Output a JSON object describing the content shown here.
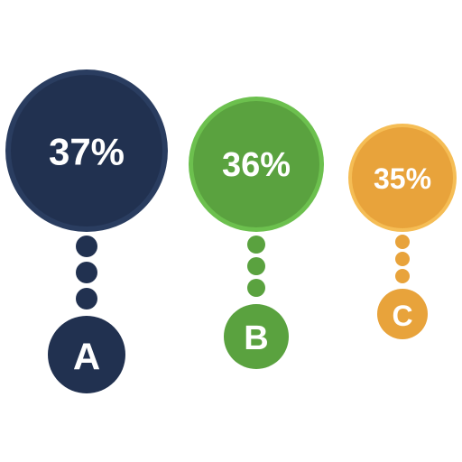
{
  "chart_data": {
    "type": "bubble",
    "categories": [
      "A",
      "B",
      "C"
    ],
    "values": [
      37,
      36,
      35
    ],
    "value_labels": [
      "37%",
      "36%",
      "35%"
    ],
    "colors": {
      "A": {
        "fill": "#213150",
        "ring": "#2a3d60"
      },
      "B": {
        "fill": "#5aa23f",
        "ring": "#6cc04e"
      },
      "C": {
        "fill": "#e8a33b",
        "ring": "#f5bd55"
      }
    }
  }
}
